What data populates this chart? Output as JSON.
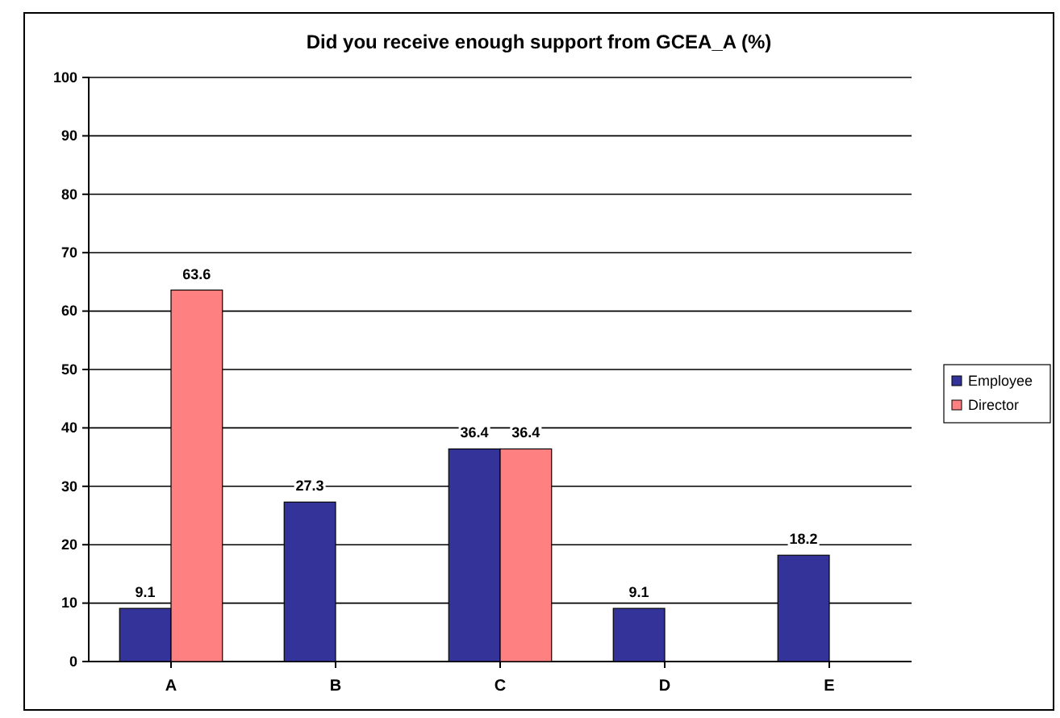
{
  "chart_data": {
    "type": "bar",
    "title": "Did you receive enough support from GCEA_A  (%)",
    "categories": [
      "A",
      "B",
      "C",
      "D",
      "E"
    ],
    "series": [
      {
        "name": "Employee",
        "color": "#333399",
        "values": [
          9.1,
          27.3,
          36.4,
          9.1,
          18.2
        ]
      },
      {
        "name": "Director",
        "color": "#ff8080",
        "values": [
          63.6,
          null,
          36.4,
          null,
          null
        ]
      }
    ],
    "ylim": [
      0,
      100
    ],
    "yticks": [
      0,
      10,
      20,
      30,
      40,
      50,
      60,
      70,
      80,
      90,
      100
    ],
    "grid": "y",
    "legend": "right",
    "data_labels": true
  }
}
